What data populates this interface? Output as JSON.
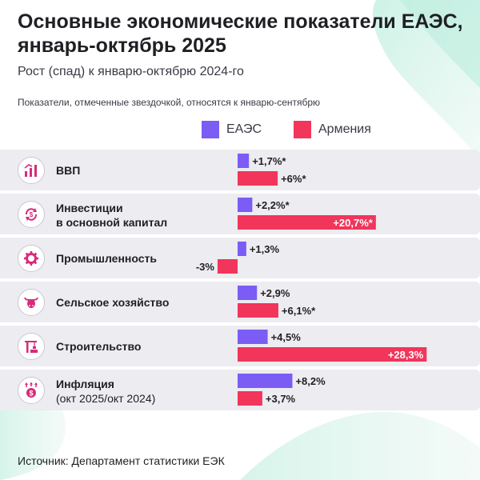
{
  "title": "Основные экономические показатели ЕАЭС, январь-октябрь 2025",
  "subtitle": "Рост (спад) к январю-октябрю 2024-го",
  "note": "Показатели, отмеченные звездочкой, относятся к январю-сентябрю",
  "source": "Источник: Департамент статистики ЕЭК",
  "colors": {
    "eaes": "#7b5cf5",
    "armenia": "#f2355b",
    "row_bg": "#ececf1",
    "icon": "#d62b7a"
  },
  "rows": [
    {
      "label": "ВВП",
      "sublabel": "",
      "icon": "gdp-chart-icon"
    },
    {
      "label": "Инвестиции",
      "label2": "в основной капитал",
      "sublabel": "",
      "icon": "investment-cycle-icon"
    },
    {
      "label": "Промышленность",
      "sublabel": "",
      "icon": "gear-icon"
    },
    {
      "label": "Сельское хозяйство",
      "sublabel": "",
      "icon": "cow-icon"
    },
    {
      "label": "Строительство",
      "sublabel": "",
      "icon": "crane-icon"
    },
    {
      "label": "Инфляция",
      "sublabel": "(окт 2025/окт 2024)",
      "icon": "money-bag-icon"
    }
  ],
  "chart_data": {
    "type": "bar",
    "orientation": "horizontal",
    "categories": [
      "ВВП",
      "Инвестиции в основной капитал",
      "Промышленность",
      "Сельское хозяйство",
      "Строительство",
      "Инфляция (окт 2025/окт 2024)"
    ],
    "unit": "%",
    "series": [
      {
        "name": "ЕАЭС",
        "values": [
          1.7,
          2.2,
          1.3,
          2.9,
          4.5,
          8.2
        ],
        "labels": [
          "+1,7%*",
          "+2,2%*",
          "+1,3%",
          "+2,9%",
          "+4,5%",
          "+8,2%"
        ]
      },
      {
        "name": "Армения",
        "values": [
          6.0,
          20.7,
          -3.0,
          6.1,
          28.3,
          3.7
        ],
        "labels": [
          "+6%*",
          "+20,7%*",
          "-3%",
          "+6,1%*",
          "+28,3%",
          "+3,7%"
        ]
      }
    ],
    "legend": "top",
    "grid": false
  }
}
